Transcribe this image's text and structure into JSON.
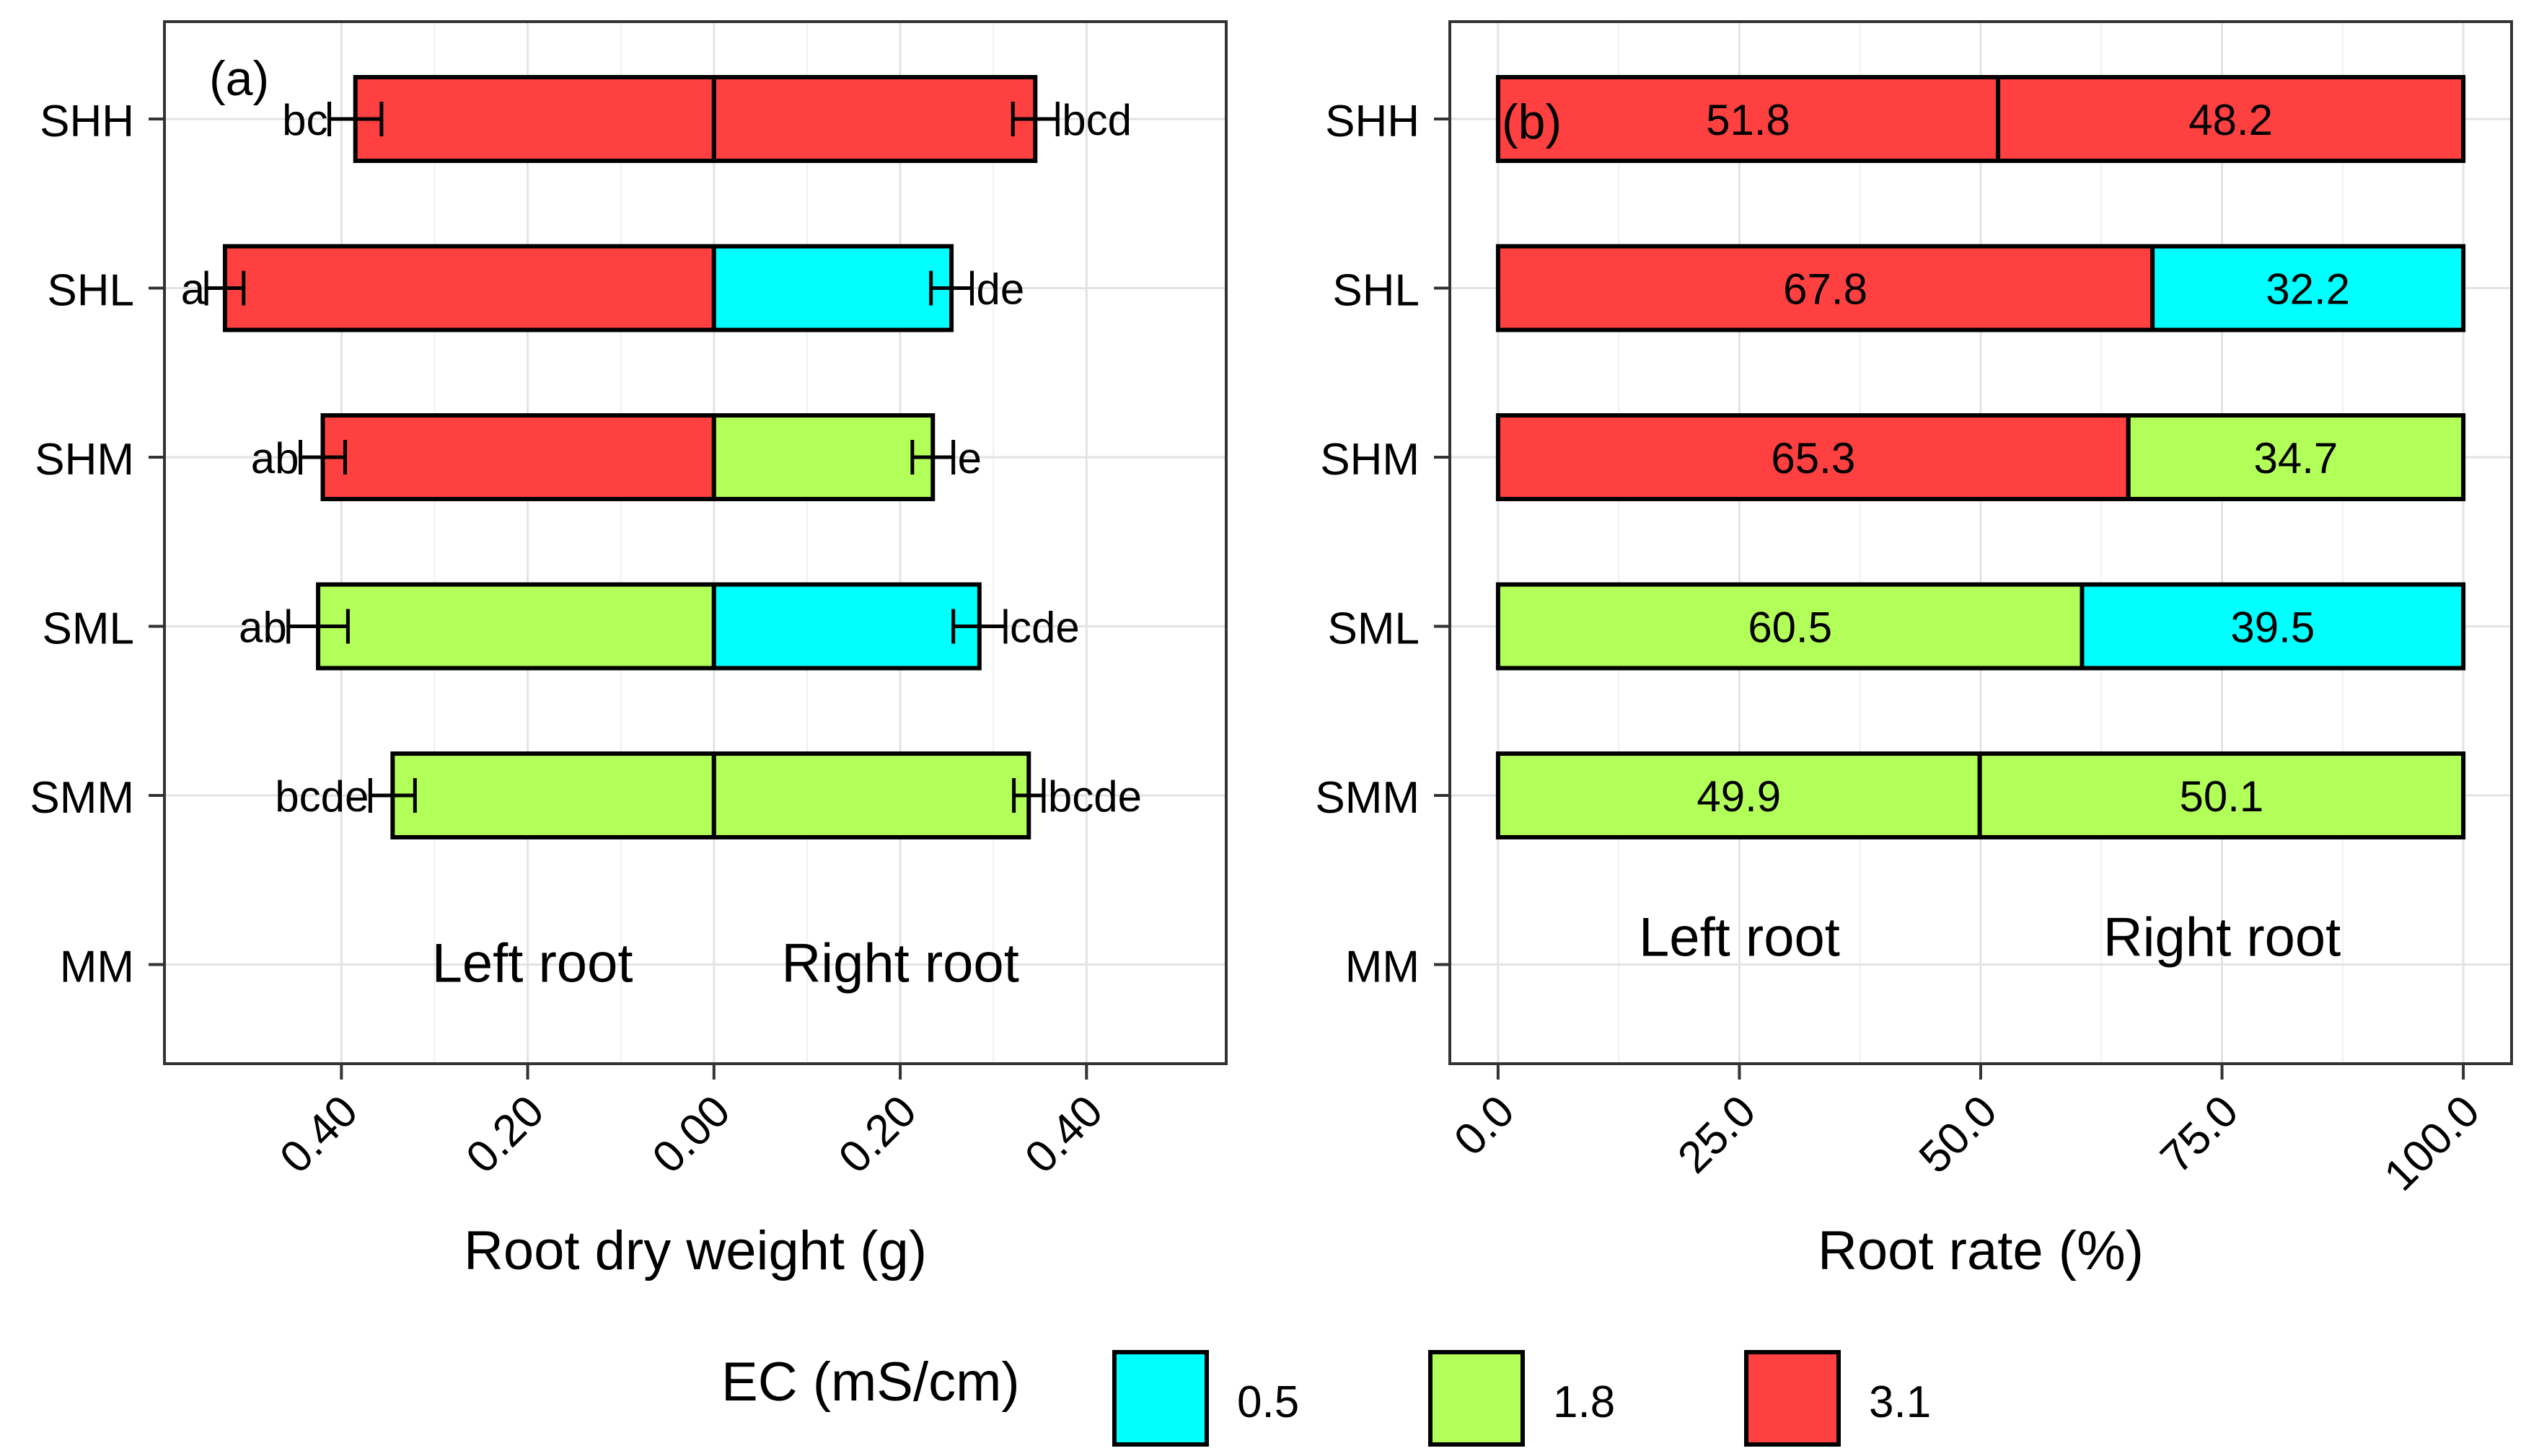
{
  "chart_data": [
    {
      "type": "bar",
      "panel_label": "(a)",
      "orientation": "horizontal",
      "categories": [
        "SHH",
        "SHL",
        "SHM",
        "SML",
        "SMM",
        "MM"
      ],
      "series": [
        {
          "name": "Left root",
          "values": [
            0.385,
            0.525,
            0.42,
            0.425,
            0.345,
            null
          ],
          "errors": [
            0.028,
            0.02,
            0.024,
            0.032,
            0.024,
            null
          ],
          "ec": [
            "3.1",
            "3.1",
            "3.1",
            "1.8",
            "1.8",
            null
          ],
          "letters": [
            "bc",
            "a",
            "ab",
            "ab",
            "bcde",
            ""
          ]
        },
        {
          "name": "Right root",
          "values": [
            0.345,
            0.255,
            0.235,
            0.285,
            0.338,
            null
          ],
          "errors": [
            0.024,
            0.022,
            0.022,
            0.028,
            0.016,
            null
          ],
          "ec": [
            "3.1",
            "0.5",
            "1.8",
            "0.5",
            "1.8",
            null
          ],
          "letters": [
            "bcd",
            "de",
            "e",
            "cde",
            "bcde",
            ""
          ]
        }
      ],
      "xlabel": "Root dry weight (g)",
      "xlim": [
        -0.59,
        0.55
      ],
      "xticks": [
        -0.4,
        -0.2,
        0.0,
        0.2,
        0.4
      ],
      "xtick_labels": [
        "0.40",
        "0.20",
        "0.00",
        "0.20",
        "0.40"
      ],
      "annotations": [
        "Left root",
        "Right root"
      ],
      "grid": true
    },
    {
      "type": "bar",
      "panel_label": "(b)",
      "orientation": "horizontal",
      "stacked": true,
      "categories": [
        "SHH",
        "SHL",
        "SHM",
        "SML",
        "SMM",
        "MM"
      ],
      "series": [
        {
          "name": "Left root",
          "values": [
            51.8,
            67.8,
            65.3,
            60.5,
            49.9,
            null
          ],
          "labels": [
            "51.8",
            "67.8",
            "65.3",
            "60.5",
            "49.9",
            ""
          ],
          "ec": [
            "3.1",
            "3.1",
            "3.1",
            "1.8",
            "1.8",
            null
          ]
        },
        {
          "name": "Right root",
          "values": [
            48.2,
            32.2,
            34.7,
            39.5,
            50.1,
            null
          ],
          "labels": [
            "48.2",
            "32.2",
            "34.7",
            "39.5",
            "50.1",
            ""
          ],
          "ec": [
            "3.1",
            "0.5",
            "1.8",
            "0.5",
            "1.8",
            null
          ]
        }
      ],
      "xlabel": "Root rate (%)",
      "xlim": [
        -5,
        105
      ],
      "xticks": [
        0,
        25,
        50,
        75,
        100
      ],
      "xtick_labels": [
        "0.0",
        "25.0",
        "50.0",
        "75.0",
        "100.0"
      ],
      "annotations": [
        "Left root",
        "Right root"
      ],
      "grid": true
    }
  ],
  "legend": {
    "title": "EC (mS/cm)",
    "position": "bottom",
    "items": [
      {
        "label": "0.5",
        "color": "#00FFFF"
      },
      {
        "label": "1.8",
        "color": "#B3FF5A"
      },
      {
        "label": "3.1",
        "color": "#FF4040"
      }
    ]
  }
}
